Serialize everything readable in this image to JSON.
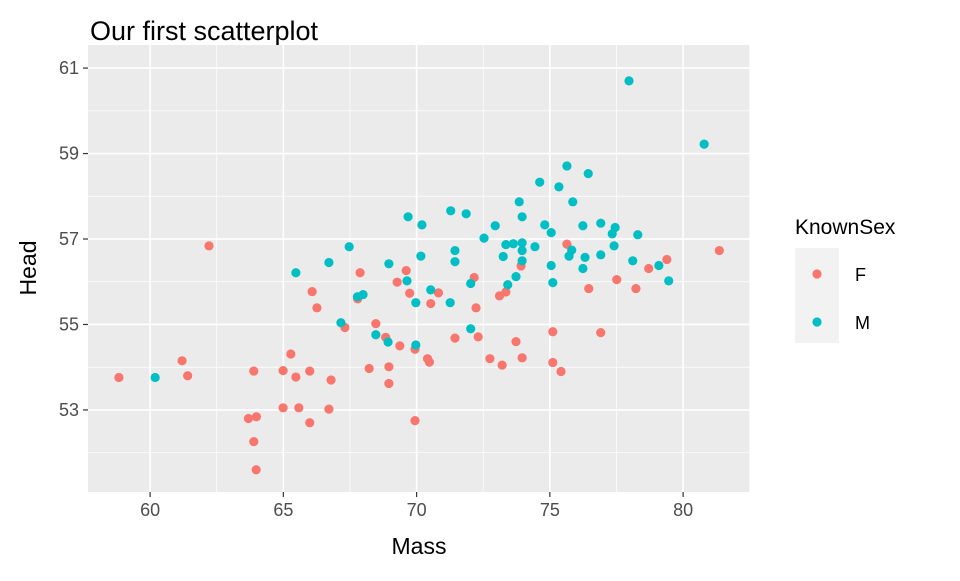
{
  "chart_data": {
    "type": "scatter",
    "title": "Our first scatterplot",
    "xlabel": "Mass",
    "ylabel": "Head",
    "xlim": [
      57.67,
      82.51
    ],
    "ylim": [
      51.08,
      61.54
    ],
    "x_ticks": [
      60,
      65,
      70,
      75,
      80
    ],
    "y_ticks": [
      53,
      55,
      57,
      59,
      61
    ],
    "grid": true,
    "legend": {
      "title": "KnownSex",
      "placement": "right"
    },
    "series": [
      {
        "name": "F",
        "color": "#F8766D",
        "points": [
          [
            58.83,
            53.76
          ],
          [
            61.2,
            54.15
          ],
          [
            61.41,
            53.8
          ],
          [
            62.21,
            56.84
          ],
          [
            63.89,
            53.91
          ],
          [
            64.99,
            53.92
          ],
          [
            65.28,
            54.31
          ],
          [
            65.47,
            53.77
          ],
          [
            65.99,
            53.91
          ],
          [
            66.79,
            53.7
          ],
          [
            63.69,
            52.8
          ],
          [
            63.99,
            52.84
          ],
          [
            63.89,
            52.26
          ],
          [
            63.98,
            51.6
          ],
          [
            64.99,
            53.05
          ],
          [
            65.58,
            53.05
          ],
          [
            66.71,
            53.02
          ],
          [
            65.99,
            52.7
          ],
          [
            66.08,
            55.77
          ],
          [
            66.26,
            55.39
          ],
          [
            67.88,
            56.21
          ],
          [
            67.31,
            54.93
          ],
          [
            67.79,
            55.6
          ],
          [
            68.47,
            55.02
          ],
          [
            68.84,
            54.7
          ],
          [
            69.37,
            54.5
          ],
          [
            68.22,
            53.97
          ],
          [
            68.96,
            54.01
          ],
          [
            68.96,
            53.62
          ],
          [
            69.61,
            56.26
          ],
          [
            69.27,
            55.99
          ],
          [
            69.74,
            55.73
          ],
          [
            69.94,
            52.75
          ],
          [
            69.94,
            54.42
          ],
          [
            70.53,
            55.49
          ],
          [
            70.82,
            55.74
          ],
          [
            72.16,
            56.1
          ],
          [
            72.23,
            55.39
          ],
          [
            73.11,
            55.67
          ],
          [
            73.35,
            55.76
          ],
          [
            73.92,
            56.37
          ],
          [
            75.64,
            56.88
          ],
          [
            76.46,
            55.84
          ],
          [
            77.51,
            56.05
          ],
          [
            78.23,
            55.84
          ],
          [
            78.71,
            56.31
          ],
          [
            79.39,
            56.52
          ],
          [
            81.36,
            56.73
          ],
          [
            70.41,
            54.2
          ],
          [
            70.48,
            54.12
          ],
          [
            71.44,
            54.68
          ],
          [
            72.31,
            54.71
          ],
          [
            72.75,
            54.2
          ],
          [
            73.21,
            54.05
          ],
          [
            73.73,
            54.6
          ],
          [
            73.96,
            54.22
          ],
          [
            75.11,
            54.83
          ],
          [
            76.91,
            54.81
          ],
          [
            75.11,
            54.11
          ],
          [
            75.42,
            53.9
          ]
        ]
      },
      {
        "name": "M",
        "color": "#00BFC4",
        "points": [
          [
            60.19,
            53.76
          ],
          [
            65.47,
            56.21
          ],
          [
            66.71,
            56.45
          ],
          [
            67.47,
            56.82
          ],
          [
            68.96,
            56.42
          ],
          [
            69.64,
            56.02
          ],
          [
            67.78,
            55.65
          ],
          [
            67.99,
            55.7
          ],
          [
            67.16,
            55.04
          ],
          [
            68.47,
            54.76
          ],
          [
            68.93,
            54.59
          ],
          [
            69.68,
            57.52
          ],
          [
            70.2,
            57.33
          ],
          [
            71.28,
            57.66
          ],
          [
            71.86,
            57.59
          ],
          [
            72.53,
            57.02
          ],
          [
            72.95,
            57.31
          ],
          [
            73.85,
            57.87
          ],
          [
            73.96,
            57.52
          ],
          [
            74.62,
            58.33
          ],
          [
            75.34,
            58.22
          ],
          [
            75.64,
            58.71
          ],
          [
            76.44,
            58.53
          ],
          [
            75.86,
            57.87
          ],
          [
            74.81,
            57.33
          ],
          [
            75.05,
            57.15
          ],
          [
            76.24,
            57.31
          ],
          [
            76.91,
            57.37
          ],
          [
            77.45,
            57.27
          ],
          [
            77.34,
            57.12
          ],
          [
            78.3,
            57.1
          ],
          [
            73.35,
            56.87
          ],
          [
            73.63,
            56.89
          ],
          [
            73.96,
            56.91
          ],
          [
            73.96,
            56.73
          ],
          [
            74.44,
            56.82
          ],
          [
            73.25,
            56.59
          ],
          [
            73.96,
            56.49
          ],
          [
            75.82,
            56.74
          ],
          [
            75.72,
            56.6
          ],
          [
            76.32,
            56.57
          ],
          [
            76.91,
            56.63
          ],
          [
            77.41,
            56.84
          ],
          [
            78.11,
            56.49
          ],
          [
            79.09,
            56.38
          ],
          [
            79.46,
            56.02
          ],
          [
            75.05,
            56.38
          ],
          [
            76.24,
            56.31
          ],
          [
            75.11,
            55.98
          ],
          [
            71.44,
            56.73
          ],
          [
            71.44,
            56.47
          ],
          [
            70.16,
            56.6
          ],
          [
            72.03,
            55.96
          ],
          [
            70.53,
            55.81
          ],
          [
            71.26,
            55.51
          ],
          [
            69.97,
            55.51
          ],
          [
            73.73,
            56.12
          ],
          [
            73.42,
            55.93
          ],
          [
            72.03,
            54.9
          ],
          [
            69.97,
            54.52
          ],
          [
            77.97,
            60.7
          ],
          [
            80.79,
            59.22
          ]
        ]
      }
    ]
  }
}
